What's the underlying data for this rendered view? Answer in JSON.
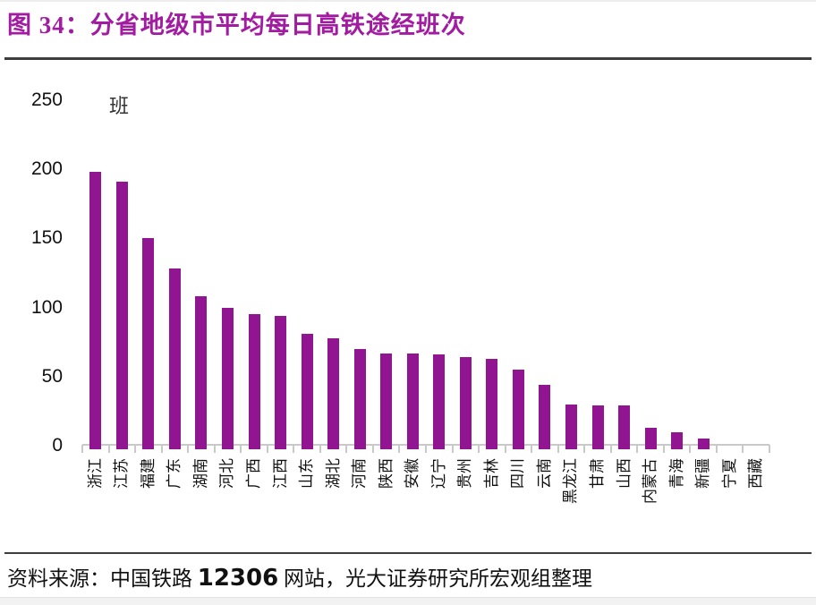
{
  "header": {
    "title_prefix": "图 34：",
    "title_text": "分省地级市平均每日高铁途经班次"
  },
  "chart_data": {
    "type": "bar",
    "title": "分省地级市平均每日高铁途经班次",
    "unit": "班",
    "ylabel": "班",
    "ylim": [
      0,
      250
    ],
    "yticks": [
      0,
      50,
      100,
      150,
      200,
      250
    ],
    "grid": false,
    "legend": false,
    "bar_color": "#911491",
    "axis_color": "#c9c9c9",
    "categories": [
      "浙江",
      "江苏",
      "福建",
      "广东",
      "湖南",
      "河北",
      "广西",
      "江西",
      "山东",
      "湖北",
      "河南",
      "陕西",
      "安徽",
      "辽宁",
      "贵州",
      "吉林",
      "四川",
      "云南",
      "黑龙江",
      "甘肃",
      "山西",
      "内蒙古",
      "青海",
      "新疆",
      "宁夏",
      "西藏"
    ],
    "values": [
      198,
      191,
      150,
      128,
      108,
      100,
      95,
      94,
      81,
      78,
      70,
      67,
      67,
      66,
      64,
      63,
      55,
      44,
      30,
      29,
      29,
      13,
      10,
      5,
      0,
      0
    ]
  },
  "footer": {
    "prefix": "资料来源：中国铁路 ",
    "number": "12306",
    "suffix": " 网站，光大证券研究所宏观组整理"
  }
}
